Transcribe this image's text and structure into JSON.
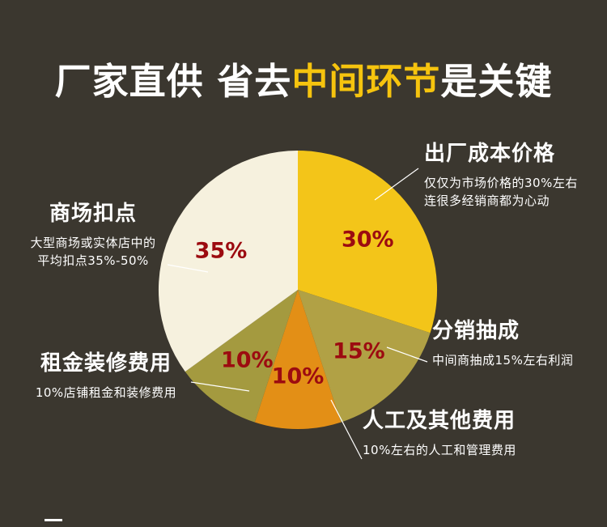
{
  "background": "#3b372f",
  "title": {
    "part1": "厂家直供 省去",
    "part2": "中间环节",
    "part3": "是关键",
    "highlight_color": "#f6c40e"
  },
  "chart_data": {
    "type": "pie",
    "title": "厂家直供 省去中间环节是关键",
    "start_angle_deg": 0,
    "direction": "clockwise",
    "legend_position": "none",
    "pct_color": "#9c0b10",
    "slices": [
      {
        "label": "出厂成本价格",
        "value": 30,
        "pct_label": "30%",
        "color": "#f3c519"
      },
      {
        "label": "分销抽成",
        "value": 15,
        "pct_label": "15%",
        "color": "#b1a145"
      },
      {
        "label": "人工及其他费用",
        "value": 10,
        "pct_label": "10%",
        "color": "#e38f16"
      },
      {
        "label": "租金装修费用",
        "value": 10,
        "pct_label": "10%",
        "color": "#a49a3f"
      },
      {
        "label": "商场扣点",
        "value": 35,
        "pct_label": "35%",
        "color": "#f6f1de"
      }
    ]
  },
  "annotations": {
    "factory": {
      "title": "出厂成本价格",
      "line1": "仅仅为市场价格的30%左右",
      "line2": "连很多经销商都为心动"
    },
    "mall": {
      "title": "商场扣点",
      "line1": "大型商场或实体店中的",
      "line2": "平均扣点35%-50%"
    },
    "distribution": {
      "title": "分销抽成",
      "line1": "中间商抽成15%左右利润"
    },
    "rent": {
      "title": "租金装修费用",
      "line1": "10%店铺租金和装修费用"
    },
    "labor": {
      "title": "人工及其他费用",
      "line1": "10%左右的人工和管理费用"
    }
  }
}
